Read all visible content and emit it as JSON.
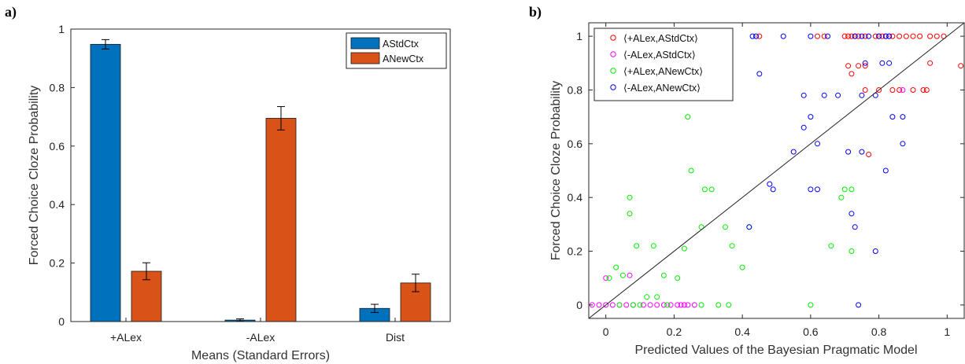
{
  "panels": {
    "a": {
      "label": "a)"
    },
    "b": {
      "label": "b)"
    }
  },
  "chart_data": [
    {
      "id": "a",
      "type": "bar",
      "xlabel": "Means (Standard Errors)",
      "ylabel": "Forced Choice Cloze Probability",
      "ylim": [
        0,
        1
      ],
      "yticks": [
        0,
        0.2,
        0.4,
        0.6,
        0.8,
        1
      ],
      "ytick_labels": [
        "0",
        "0.2",
        "0.4",
        "0.6",
        "0.8",
        "1"
      ],
      "categories": [
        "+ALex",
        "-ALex",
        "Dist"
      ],
      "series": [
        {
          "name": "AStdCtx",
          "color": "#0072BD",
          "values": [
            0.948,
            0.005,
            0.045
          ],
          "errors": [
            0.016,
            0.004,
            0.014
          ]
        },
        {
          "name": "ANewCtx",
          "color": "#D95319",
          "values": [
            0.172,
            0.695,
            0.132
          ],
          "errors": [
            0.029,
            0.04,
            0.03
          ]
        }
      ],
      "legend_position": "top-right",
      "grid": false
    },
    {
      "id": "b",
      "type": "scatter",
      "xlabel": "Predicted Values of the Bayesian Pragmatic Model",
      "ylabel": "Forced Choice Cloze Probability",
      "xlim": [
        -0.05,
        1.05
      ],
      "ylim": [
        -0.05,
        1.05
      ],
      "xticks": [
        0,
        0.2,
        0.4,
        0.6,
        0.8,
        1
      ],
      "xtick_labels": [
        "0",
        "0.2",
        "0.4",
        "0.6",
        "0.8",
        "1"
      ],
      "yticks": [
        0,
        0.2,
        0.4,
        0.6,
        0.8,
        1
      ],
      "ytick_labels": [
        "0",
        "0.2",
        "0.4",
        "0.6",
        "0.8",
        "1"
      ],
      "legend_position": "top-left",
      "grid": false,
      "reference_line": {
        "from": [
          -0.05,
          -0.05
        ],
        "to": [
          1.05,
          1.05
        ],
        "color": "#222222"
      },
      "series": [
        {
          "name": "⟨+ALex,AStdCtx⟩",
          "color": "#ff0000",
          "points": [
            [
              0.45,
              1
            ],
            [
              0.62,
              1
            ],
            [
              0.64,
              1
            ],
            [
              0.7,
              1
            ],
            [
              0.71,
              1
            ],
            [
              0.72,
              1
            ],
            [
              0.73,
              1
            ],
            [
              0.74,
              1
            ],
            [
              0.76,
              1
            ],
            [
              0.79,
              1
            ],
            [
              0.8,
              1
            ],
            [
              0.81,
              1
            ],
            [
              0.82,
              1
            ],
            [
              0.83,
              1
            ],
            [
              0.84,
              1
            ],
            [
              0.86,
              1
            ],
            [
              0.88,
              1
            ],
            [
              0.9,
              1
            ],
            [
              0.92,
              1
            ],
            [
              0.95,
              1
            ],
            [
              0.97,
              1
            ],
            [
              0.99,
              1
            ],
            [
              0.71,
              0.89
            ],
            [
              0.74,
              0.89
            ],
            [
              0.76,
              0.89
            ],
            [
              0.95,
              0.9
            ],
            [
              1.04,
              0.89
            ],
            [
              0.72,
              0.86
            ],
            [
              0.76,
              0.8
            ],
            [
              0.8,
              0.8
            ],
            [
              0.84,
              0.8
            ],
            [
              0.86,
              0.8
            ],
            [
              0.9,
              0.8
            ],
            [
              0.93,
              0.8
            ],
            [
              0.94,
              0.8
            ],
            [
              0.77,
              0.56
            ]
          ]
        },
        {
          "name": "⟨-ALex,AStdCtx⟩",
          "color": "#ff00ff",
          "points": [
            [
              -0.04,
              0
            ],
            [
              -0.02,
              0
            ],
            [
              0,
              0
            ],
            [
              0.02,
              0
            ],
            [
              0.04,
              0
            ],
            [
              0.06,
              0
            ],
            [
              0.08,
              0
            ],
            [
              0.11,
              0
            ],
            [
              0.13,
              0
            ],
            [
              0.15,
              0
            ],
            [
              0.17,
              0
            ],
            [
              0.19,
              0
            ],
            [
              0.21,
              0
            ],
            [
              0.22,
              0
            ],
            [
              0.23,
              0
            ],
            [
              0.24,
              0
            ],
            [
              0.26,
              0
            ],
            [
              0,
              0.1
            ],
            [
              0.07,
              0.11
            ],
            [
              0.87,
              0.8
            ]
          ]
        },
        {
          "name": "⟨+ALex,ANewCtx⟩",
          "color": "#00ee00",
          "points": [
            [
              0.24,
              0.7
            ],
            [
              0.25,
              0.5
            ],
            [
              0.07,
              0.4
            ],
            [
              0.07,
              0.34
            ],
            [
              0.29,
              0.43
            ],
            [
              0.31,
              0.43
            ],
            [
              0.35,
              0.29
            ],
            [
              0.42,
              0.29
            ],
            [
              0.28,
              0.29
            ],
            [
              0.37,
              0.22
            ],
            [
              0.23,
              0.21
            ],
            [
              0.09,
              0.22
            ],
            [
              0.14,
              0.22
            ],
            [
              0.03,
              0.14
            ],
            [
              0.05,
              0.11
            ],
            [
              0.17,
              0.11
            ],
            [
              0.21,
              0.1
            ],
            [
              0.12,
              0.03
            ],
            [
              0.15,
              0.03
            ],
            [
              0.4,
              0.14
            ],
            [
              0.7,
              0.43
            ],
            [
              0.72,
              0.43
            ],
            [
              0.69,
              0.4
            ],
            [
              0.66,
              0.22
            ],
            [
              0.72,
              0.2
            ],
            [
              0.6,
              0
            ],
            [
              0.04,
              0
            ],
            [
              0.08,
              0
            ],
            [
              0.1,
              0
            ],
            [
              0.18,
              0
            ],
            [
              0.28,
              0
            ],
            [
              0.33,
              0
            ],
            [
              0.36,
              0
            ],
            [
              0.01,
              0.1
            ]
          ]
        },
        {
          "name": "⟨-ALex,ANewCtx⟩",
          "color": "#0000ff",
          "points": [
            [
              0.43,
              1
            ],
            [
              0.44,
              1
            ],
            [
              0.52,
              1
            ],
            [
              0.6,
              1
            ],
            [
              0.65,
              1
            ],
            [
              0.73,
              1
            ],
            [
              0.75,
              1
            ],
            [
              0.77,
              1
            ],
            [
              0.8,
              1
            ],
            [
              0.82,
              1
            ],
            [
              0.83,
              1
            ],
            [
              0.76,
              0.9
            ],
            [
              0.81,
              0.9
            ],
            [
              0.83,
              0.9
            ],
            [
              0.58,
              0.78
            ],
            [
              0.64,
              0.78
            ],
            [
              0.68,
              0.78
            ],
            [
              0.75,
              0.78
            ],
            [
              0.79,
              0.78
            ],
            [
              0.45,
              0.86
            ],
            [
              0.84,
              0.7
            ],
            [
              0.87,
              0.7
            ],
            [
              0.58,
              0.66
            ],
            [
              0.6,
              0.7
            ],
            [
              0.62,
              0.6
            ],
            [
              0.87,
              0.6
            ],
            [
              0.55,
              0.57
            ],
            [
              0.71,
              0.57
            ],
            [
              0.75,
              0.57
            ],
            [
              0.82,
              0.5
            ],
            [
              0.48,
              0.45
            ],
            [
              0.49,
              0.43
            ],
            [
              0.6,
              0.43
            ],
            [
              0.62,
              0.43
            ],
            [
              0.72,
              0.34
            ],
            [
              0.73,
              0.29
            ],
            [
              0.42,
              0.29
            ],
            [
              0.79,
              0.2
            ],
            [
              0.74,
              0
            ]
          ]
        }
      ]
    }
  ]
}
